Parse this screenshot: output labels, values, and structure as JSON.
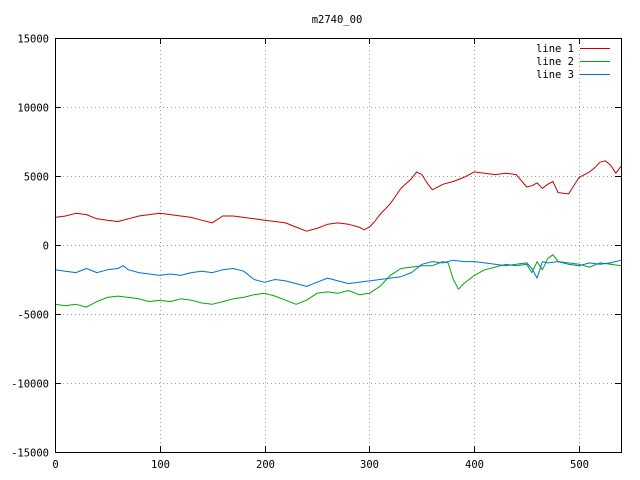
{
  "chart_data": {
    "type": "line",
    "title": "m2740_00",
    "xlabel": "",
    "ylabel": "",
    "xlim": [
      0,
      540
    ],
    "ylim": [
      -15000,
      15000
    ],
    "x_ticks": [
      "0",
      "100",
      "200",
      "300",
      "400",
      "500"
    ],
    "y_ticks": [
      "15000",
      "10000",
      "5000",
      "0",
      "-5000",
      "-10000",
      "-15000"
    ],
    "grid": true,
    "legend_position": "top-right",
    "series": [
      {
        "name": "line 1",
        "color": "#cc0000",
        "x": [
          0,
          10,
          20,
          30,
          40,
          50,
          60,
          70,
          80,
          90,
          100,
          110,
          120,
          130,
          140,
          150,
          160,
          170,
          180,
          190,
          200,
          210,
          220,
          230,
          240,
          250,
          260,
          270,
          280,
          290,
          295,
          300,
          305,
          310,
          320,
          330,
          340,
          345,
          350,
          355,
          360,
          370,
          380,
          390,
          400,
          410,
          420,
          430,
          440,
          450,
          455,
          460,
          465,
          470,
          475,
          480,
          490,
          500,
          510,
          515,
          520,
          525,
          530,
          535,
          540
        ],
        "y": [
          2000,
          2100,
          2300,
          2200,
          1900,
          1800,
          1700,
          1900,
          2100,
          2200,
          2300,
          2200,
          2100,
          2000,
          1800,
          1600,
          2100,
          2100,
          2000,
          1900,
          1800,
          1700,
          1600,
          1300,
          1000,
          1200,
          1500,
          1600,
          1500,
          1300,
          1100,
          1300,
          1700,
          2200,
          3000,
          4100,
          4800,
          5300,
          5100,
          4500,
          4000,
          4400,
          4600,
          4900,
          5300,
          5200,
          5100,
          5200,
          5100,
          4200,
          4300,
          4500,
          4100,
          4400,
          4600,
          3800,
          3700,
          4900,
          5300,
          5600,
          6000,
          6100,
          5800,
          5200,
          5700
        ]
      },
      {
        "name": "line 2",
        "color": "#00aa00",
        "x": [
          0,
          10,
          20,
          30,
          40,
          50,
          60,
          70,
          80,
          90,
          100,
          110,
          120,
          130,
          140,
          150,
          160,
          170,
          180,
          190,
          200,
          210,
          220,
          230,
          240,
          250,
          260,
          270,
          280,
          290,
          300,
          310,
          320,
          330,
          340,
          350,
          360,
          370,
          375,
          380,
          385,
          390,
          400,
          410,
          420,
          430,
          440,
          450,
          455,
          460,
          465,
          470,
          475,
          480,
          490,
          500,
          510,
          520,
          530,
          540
        ],
        "y": [
          -4300,
          -4400,
          -4300,
          -4500,
          -4100,
          -3800,
          -3700,
          -3800,
          -3900,
          -4100,
          -4000,
          -4100,
          -3900,
          -4000,
          -4200,
          -4300,
          -4100,
          -3900,
          -3800,
          -3600,
          -3500,
          -3700,
          -4000,
          -4300,
          -4000,
          -3500,
          -3400,
          -3500,
          -3300,
          -3600,
          -3500,
          -3000,
          -2200,
          -1700,
          -1600,
          -1500,
          -1500,
          -1200,
          -1300,
          -2500,
          -3200,
          -2800,
          -2200,
          -1800,
          -1600,
          -1400,
          -1500,
          -1400,
          -2000,
          -1200,
          -1800,
          -1000,
          -700,
          -1200,
          -1300,
          -1400,
          -1600,
          -1300,
          -1400,
          -1500
        ]
      },
      {
        "name": "line 3",
        "color": "#0070dd",
        "x": [
          0,
          10,
          20,
          30,
          40,
          50,
          60,
          65,
          70,
          80,
          90,
          100,
          110,
          120,
          130,
          140,
          150,
          160,
          170,
          180,
          190,
          200,
          210,
          220,
          230,
          240,
          250,
          260,
          270,
          280,
          290,
          300,
          310,
          320,
          330,
          340,
          350,
          360,
          370,
          380,
          390,
          400,
          410,
          420,
          430,
          440,
          450,
          455,
          460,
          465,
          470,
          480,
          490,
          500,
          510,
          520,
          530,
          540
        ],
        "y": [
          -1800,
          -1900,
          -2000,
          -1700,
          -2000,
          -1800,
          -1700,
          -1500,
          -1800,
          -2000,
          -2100,
          -2200,
          -2100,
          -2200,
          -2000,
          -1900,
          -2000,
          -1800,
          -1700,
          -1900,
          -2500,
          -2700,
          -2500,
          -2600,
          -2800,
          -3000,
          -2700,
          -2400,
          -2600,
          -2800,
          -2700,
          -2600,
          -2500,
          -2400,
          -2300,
          -2000,
          -1400,
          -1200,
          -1300,
          -1100,
          -1200,
          -1200,
          -1300,
          -1400,
          -1500,
          -1400,
          -1300,
          -1700,
          -2400,
          -1200,
          -1300,
          -1200,
          -1400,
          -1500,
          -1300,
          -1400,
          -1300,
          -1100
        ]
      }
    ]
  }
}
